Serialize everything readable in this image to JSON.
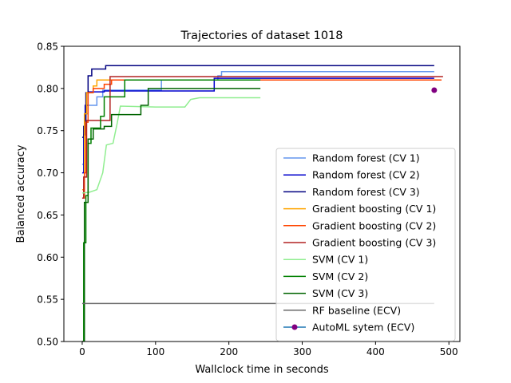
{
  "chart_data": {
    "type": "line",
    "title": "Trajectories of dataset 1018",
    "xlabel": "Wallclock time in seconds",
    "ylabel": "Balanced accuracy",
    "xlim": [
      -25,
      515
    ],
    "ylim": [
      0.5,
      0.85
    ],
    "xticks": [
      0,
      100,
      200,
      300,
      400,
      500
    ],
    "yticks": [
      0.5,
      0.55,
      0.6,
      0.65,
      0.7,
      0.75,
      0.8,
      0.85
    ],
    "xtick_labels": [
      "0",
      "100",
      "200",
      "300",
      "400",
      "500"
    ],
    "ytick_labels": [
      "0.50",
      "0.55",
      "0.60",
      "0.65",
      "0.70",
      "0.75",
      "0.80",
      "0.85"
    ],
    "grid": false,
    "legend_position": "lower-right",
    "series": [
      {
        "name": "Random forest (CV 1)",
        "color": "#6495ED",
        "step": true,
        "points": [
          [
            0,
            0.71
          ],
          [
            2,
            0.745
          ],
          [
            5,
            0.77
          ],
          [
            8,
            0.78
          ],
          [
            15,
            0.78
          ],
          [
            20,
            0.79
          ],
          [
            28,
            0.798
          ],
          [
            60,
            0.798
          ],
          [
            108,
            0.81
          ],
          [
            185,
            0.815
          ],
          [
            190,
            0.82
          ],
          [
            480,
            0.82
          ]
        ]
      },
      {
        "name": "Random forest (CV 2)",
        "color": "#0000CD",
        "step": true,
        "points": [
          [
            0,
            0.7
          ],
          [
            2,
            0.745
          ],
          [
            4,
            0.78
          ],
          [
            8,
            0.796
          ],
          [
            30,
            0.797
          ],
          [
            175,
            0.797
          ],
          [
            180,
            0.812
          ],
          [
            480,
            0.812
          ]
        ]
      },
      {
        "name": "Random forest (CV 3)",
        "color": "#000080",
        "step": true,
        "points": [
          [
            0,
            0.742
          ],
          [
            2,
            0.755
          ],
          [
            5,
            0.795
          ],
          [
            8,
            0.815
          ],
          [
            13,
            0.823
          ],
          [
            32,
            0.827
          ],
          [
            480,
            0.827
          ]
        ]
      },
      {
        "name": "Gradient boosting (CV 1)",
        "color": "#FFA500",
        "step": true,
        "points": [
          [
            0,
            0.68
          ],
          [
            3,
            0.77
          ],
          [
            6,
            0.795
          ],
          [
            15,
            0.803
          ],
          [
            20,
            0.81
          ],
          [
            480,
            0.81
          ]
        ]
      },
      {
        "name": "Gradient boosting (CV 2)",
        "color": "#FF4500",
        "step": true,
        "points": [
          [
            0,
            0.67
          ],
          [
            3,
            0.7
          ],
          [
            5,
            0.76
          ],
          [
            8,
            0.795
          ],
          [
            15,
            0.8
          ],
          [
            30,
            0.805
          ],
          [
            40,
            0.81
          ],
          [
            490,
            0.81
          ]
        ]
      },
      {
        "name": "Gradient boosting (CV 3)",
        "color": "#B22222",
        "step": true,
        "points": [
          [
            0,
            0.67
          ],
          [
            2,
            0.695
          ],
          [
            6,
            0.762
          ],
          [
            35,
            0.762
          ],
          [
            38,
            0.814
          ],
          [
            492,
            0.814
          ]
        ]
      },
      {
        "name": "SVM (CV 1)",
        "color": "#90EE90",
        "step": false,
        "points": [
          [
            0,
            0.676
          ],
          [
            10,
            0.677
          ],
          [
            20,
            0.68
          ],
          [
            28,
            0.7
          ],
          [
            33,
            0.733
          ],
          [
            42,
            0.735
          ],
          [
            48,
            0.76
          ],
          [
            52,
            0.779
          ],
          [
            100,
            0.778
          ],
          [
            140,
            0.778
          ],
          [
            148,
            0.787
          ],
          [
            160,
            0.789
          ],
          [
            243,
            0.789
          ]
        ]
      },
      {
        "name": "SVM (CV 2)",
        "color": "#008000",
        "step": true,
        "points": [
          [
            0,
            0.5
          ],
          [
            2,
            0.617
          ],
          [
            5,
            0.673
          ],
          [
            8,
            0.735
          ],
          [
            12,
            0.753
          ],
          [
            25,
            0.767
          ],
          [
            30,
            0.79
          ],
          [
            55,
            0.79
          ],
          [
            58,
            0.81
          ],
          [
            243,
            0.81
          ]
        ]
      },
      {
        "name": "SVM (CV 3)",
        "color": "#006400",
        "step": true,
        "points": [
          [
            0,
            0.5
          ],
          [
            3,
            0.665
          ],
          [
            8,
            0.74
          ],
          [
            15,
            0.752
          ],
          [
            25,
            0.752
          ],
          [
            30,
            0.755
          ],
          [
            40,
            0.769
          ],
          [
            80,
            0.78
          ],
          [
            90,
            0.8
          ],
          [
            243,
            0.8
          ]
        ]
      },
      {
        "name": "RF baseline (ECV)",
        "color": "#696969",
        "step": false,
        "points": [
          [
            0,
            0.545
          ],
          [
            480,
            0.545
          ]
        ]
      }
    ],
    "markers": [
      {
        "name": "AutoML sytem (ECV)",
        "color": "#800080",
        "line_color": "#1f77b4",
        "x": 480,
        "y": 0.798
      }
    ]
  }
}
